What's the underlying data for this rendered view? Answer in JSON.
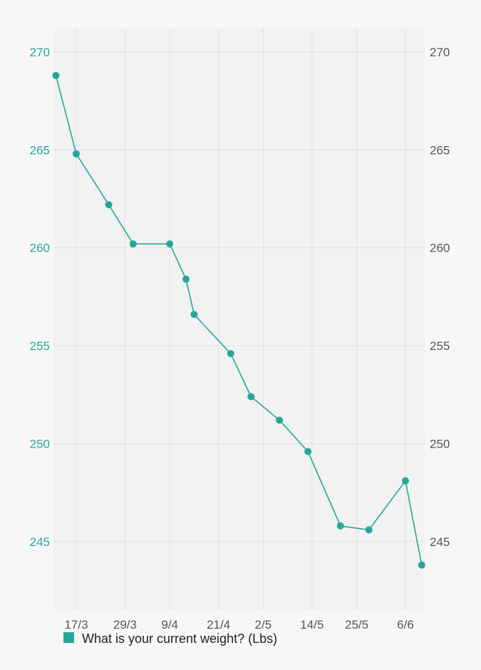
{
  "chart_data": {
    "type": "line",
    "title": "",
    "xlabel": "",
    "ylabel": "",
    "x_tick_labels": [
      "17/3",
      "29/3",
      "9/4",
      "21/4",
      "2/5",
      "14/5",
      "25/5",
      "6/6"
    ],
    "y_ticks": [
      "245",
      "250",
      "255",
      "260",
      "265",
      "270"
    ],
    "ylim": [
      241.5,
      271.2
    ],
    "grid": true,
    "dual_y_axis": true,
    "legend_position": "bottom-left",
    "series": [
      {
        "name": "What is your current weight? (Lbs)",
        "color": "#26a69a",
        "points": [
          {
            "x": "12/3",
            "y": 268.8
          },
          {
            "x": "17/3",
            "y": 264.8
          },
          {
            "x": "25/3",
            "y": 262.2
          },
          {
            "x": "31/3",
            "y": 260.2
          },
          {
            "x": "9/4",
            "y": 260.2
          },
          {
            "x": "13/4",
            "y": 258.4
          },
          {
            "x": "15/4",
            "y": 256.6
          },
          {
            "x": "24/4",
            "y": 254.6
          },
          {
            "x": "29/4",
            "y": 252.4
          },
          {
            "x": "6/5",
            "y": 251.2
          },
          {
            "x": "13/5",
            "y": 249.6
          },
          {
            "x": "21/5",
            "y": 245.8
          },
          {
            "x": "28/5",
            "y": 245.6
          },
          {
            "x": "6/6",
            "y": 248.1
          },
          {
            "x": "10/6",
            "y": 243.8
          }
        ]
      }
    ]
  }
}
